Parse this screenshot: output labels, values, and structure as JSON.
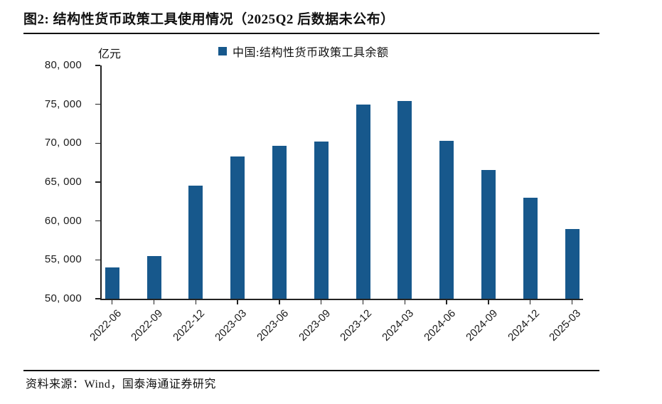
{
  "figure": {
    "title": "图2:  结构性货币政策工具使用情况（2025Q2 后数据未公布）",
    "source_note": "资料来源：Wind，国泰海通证券研究"
  },
  "chart_data": {
    "type": "bar",
    "title": "",
    "xlabel": "",
    "ylabel": "亿元",
    "unit_label": "亿元",
    "legend_position": "top",
    "grid": false,
    "bar_color": "#17588c",
    "axis_color": "#222222",
    "ylim": [
      50000,
      80000
    ],
    "ytick_interval": 5000,
    "ytick_labels": [
      "80, 000",
      "75, 000",
      "70, 000",
      "65, 000",
      "60, 000",
      "55, 000",
      "50, 000"
    ],
    "categories": [
      "2022-06",
      "2022-09",
      "2022-12",
      "2023-03",
      "2023-06",
      "2023-09",
      "2023-12",
      "2024-03",
      "2024-06",
      "2024-09",
      "2024-12",
      "2025-03"
    ],
    "series": [
      {
        "name": "中国:结构性货币政策工具余额",
        "values": [
          54000,
          55500,
          64500,
          68300,
          69700,
          70200,
          75000,
          75400,
          70300,
          66600,
          63000,
          59000
        ]
      }
    ]
  }
}
